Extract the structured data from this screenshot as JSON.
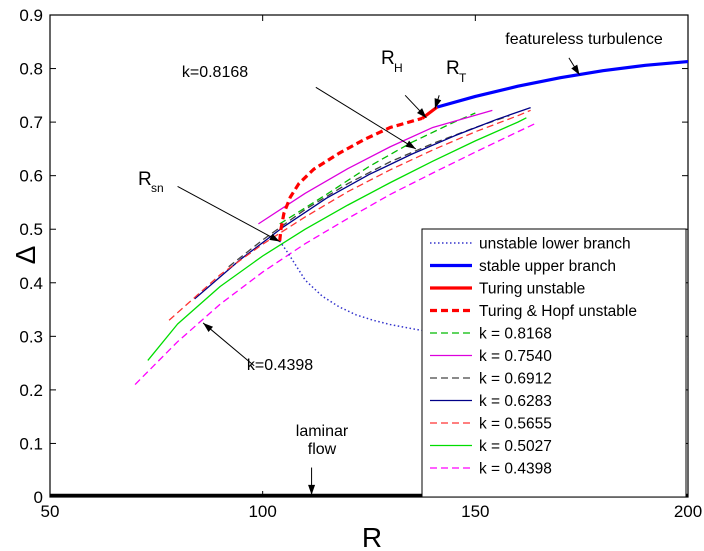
{
  "chart_data": {
    "type": "line",
    "xlabel": "R",
    "ylabel": "Δ",
    "xlim": [
      50,
      200
    ],
    "ylim": [
      0,
      0.9
    ],
    "xticks": [
      "50",
      "100",
      "150",
      "200"
    ],
    "yticks": [
      "0",
      "0.1",
      "0.2",
      "0.3",
      "0.4",
      "0.5",
      "0.6",
      "0.7",
      "0.8",
      "0.9"
    ],
    "grid": false,
    "legend_position": "bottom-right",
    "series": [
      {
        "name": "unstable lower branch",
        "color": "#3333cc",
        "style": "dotted",
        "x": [
          104,
          106,
          108,
          110,
          114,
          118,
          122,
          126,
          130,
          136,
          142,
          150,
          160,
          175,
          200
        ],
        "y": [
          0.478,
          0.455,
          0.43,
          0.405,
          0.375,
          0.355,
          0.34,
          0.33,
          0.322,
          0.313,
          0.305,
          0.297,
          0.288,
          0.278,
          0.262
        ]
      },
      {
        "name": "stable upper branch",
        "color": "#0000ff",
        "style": "solid-thick",
        "x": [
          141,
          150,
          160,
          170,
          180,
          190,
          200
        ],
        "y": [
          0.728,
          0.748,
          0.767,
          0.783,
          0.796,
          0.806,
          0.813
        ]
      },
      {
        "name": "Turing unstable",
        "color": "#ff0000",
        "style": "solid-thick",
        "x": [
          137.5,
          141
        ],
        "y": [
          0.707,
          0.728
        ]
      },
      {
        "name": "Turing & Hopf unstable",
        "color": "#ff0000",
        "style": "dashed-thick",
        "x": [
          104,
          104.3,
          105,
          106.5,
          108.5,
          112,
          118,
          124,
          130,
          137.5
        ],
        "y": [
          0.478,
          0.5,
          0.53,
          0.56,
          0.585,
          0.612,
          0.642,
          0.668,
          0.69,
          0.707
        ]
      },
      {
        "name": "k = 0.8168",
        "color": "#00bb00",
        "style": "dashed",
        "x": [
          104,
          115,
          125,
          135,
          145,
          150
        ],
        "y": [
          0.51,
          0.565,
          0.617,
          0.662,
          0.7,
          0.717
        ]
      },
      {
        "name": "k = 0.7540",
        "color": "#dd00dd",
        "style": "solid",
        "x": [
          99,
          110,
          120,
          130,
          140,
          154
        ],
        "y": [
          0.51,
          0.567,
          0.613,
          0.654,
          0.69,
          0.722
        ]
      },
      {
        "name": "k = 0.6912",
        "color": "#444444",
        "style": "dashed",
        "x": [
          92,
          100,
          110,
          120,
          130,
          140,
          150,
          158
        ],
        "y": [
          0.43,
          0.48,
          0.537,
          0.585,
          0.626,
          0.66,
          0.69,
          0.712
        ]
      },
      {
        "name": "k = 0.6283",
        "color": "#000088",
        "style": "solid",
        "x": [
          84,
          95,
          105,
          115,
          125,
          135,
          145,
          155,
          163
        ],
        "y": [
          0.37,
          0.445,
          0.505,
          0.558,
          0.602,
          0.64,
          0.674,
          0.705,
          0.727
        ]
      },
      {
        "name": "k = 0.5655",
        "color": "#ff3333",
        "style": "dashed",
        "x": [
          78,
          90,
          100,
          110,
          120,
          130,
          140,
          150,
          160,
          163
        ],
        "y": [
          0.33,
          0.415,
          0.472,
          0.523,
          0.57,
          0.611,
          0.648,
          0.682,
          0.712,
          0.722
        ]
      },
      {
        "name": "k = 0.5027",
        "color": "#00dd00",
        "style": "solid",
        "x": [
          73,
          80,
          90,
          100,
          110,
          120,
          130,
          140,
          150,
          160,
          162
        ],
        "y": [
          0.255,
          0.323,
          0.393,
          0.45,
          0.5,
          0.545,
          0.587,
          0.627,
          0.665,
          0.7,
          0.708
        ]
      },
      {
        "name": "k = 0.4398",
        "color": "#ff00ff",
        "style": "dashed",
        "x": [
          70,
          80,
          90,
          100,
          110,
          120,
          130,
          140,
          150,
          160,
          164
        ],
        "y": [
          0.21,
          0.29,
          0.36,
          0.42,
          0.473,
          0.52,
          0.565,
          0.605,
          0.644,
          0.682,
          0.697
        ]
      },
      {
        "name": "",
        "color": "#000000",
        "style": "solid-thick",
        "x": [
          50,
          200
        ],
        "y": [
          0.003,
          0.003
        ]
      }
    ],
    "annotations": [
      {
        "id": "k08168",
        "text": "k=0.8168",
        "from": [
          112.5,
          0.765
        ],
        "to": [
          136,
          0.65
        ]
      },
      {
        "id": "rsn",
        "main": "R",
        "sub": "sn",
        "from": [
          80,
          0.58
        ],
        "to": [
          104,
          0.477
        ]
      },
      {
        "id": "k04398",
        "text": "k=0.4398",
        "from": [
          98,
          0.245
        ],
        "to": [
          86,
          0.325
        ]
      },
      {
        "id": "rh",
        "main": "R",
        "sub": "H",
        "from": [
          133.5,
          0.75
        ],
        "to": [
          138.5,
          0.708
        ]
      },
      {
        "id": "rt",
        "main": "R",
        "sub": "T",
        "from": [
          141.5,
          0.75
        ],
        "to": [
          140.5,
          0.725
        ]
      },
      {
        "id": "turb",
        "text": "featureless turbulence",
        "from": [
          172,
          0.82
        ],
        "to": [
          174.5,
          0.788
        ]
      },
      {
        "id": "laminar",
        "text": "laminar",
        "from": [
          111.5,
          0.055
        ],
        "to": [
          111.5,
          0.004
        ]
      },
      {
        "id": "flow",
        "text": "flow"
      }
    ]
  }
}
